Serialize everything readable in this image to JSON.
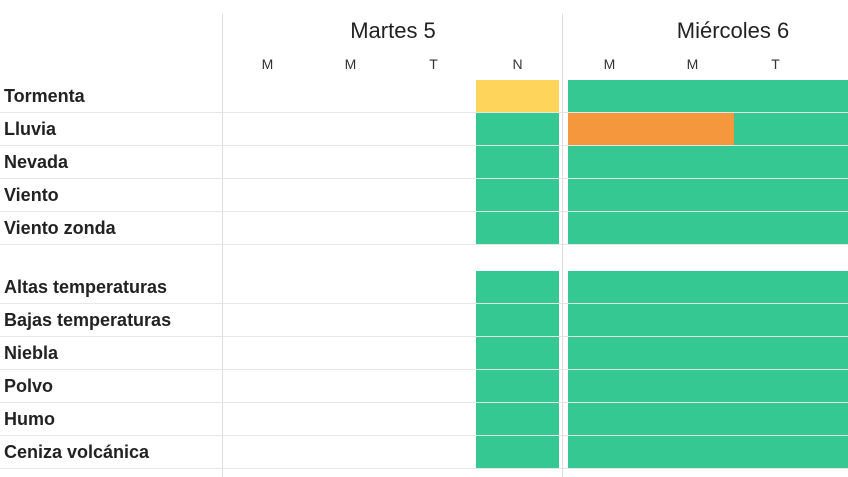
{
  "days": [
    {
      "title": "Martes 5",
      "periods": [
        {
          "label": "M",
          "levels": [
            null,
            null,
            null,
            null,
            null,
            null,
            null,
            null,
            null,
            null,
            null
          ]
        },
        {
          "label": "M",
          "levels": [
            null,
            null,
            null,
            null,
            null,
            null,
            null,
            null,
            null,
            null,
            null
          ]
        },
        {
          "label": "T",
          "levels": [
            null,
            null,
            null,
            null,
            null,
            null,
            null,
            null,
            null,
            null,
            null
          ]
        },
        {
          "label": "N",
          "levels": [
            "yellow",
            "green",
            "green",
            "green",
            "green",
            "green",
            "green",
            "green",
            "green",
            "green",
            "green"
          ]
        }
      ]
    },
    {
      "title": "Miércoles 6",
      "periods": [
        {
          "label": "M",
          "levels": [
            "green",
            "orange",
            "green",
            "green",
            "green",
            "green",
            "green",
            "green",
            "green",
            "green",
            "green"
          ]
        },
        {
          "label": "M",
          "levels": [
            "green",
            "orange",
            "green",
            "green",
            "green",
            "green",
            "green",
            "green",
            "green",
            "green",
            "green"
          ]
        },
        {
          "label": "T",
          "levels": [
            "green",
            "green",
            "green",
            "green",
            "green",
            "green",
            "green",
            "green",
            "green",
            "green",
            "green"
          ]
        },
        {
          "label": "",
          "levels": [
            "green",
            "green",
            "green",
            "green",
            "green",
            "green",
            "green",
            "green",
            "green",
            "green",
            "green"
          ]
        }
      ]
    }
  ],
  "phenomena": [
    "Tormenta",
    "Lluvia",
    "Nevada",
    "Viento",
    "Viento zonda",
    "Altas temperaturas",
    "Bajas temperaturas",
    "Niebla",
    "Polvo",
    "Humo",
    "Ceniza volcánica"
  ],
  "colors": {
    "green": "#35c893",
    "yellow": "#ffd45a",
    "orange": "#f5973d"
  }
}
